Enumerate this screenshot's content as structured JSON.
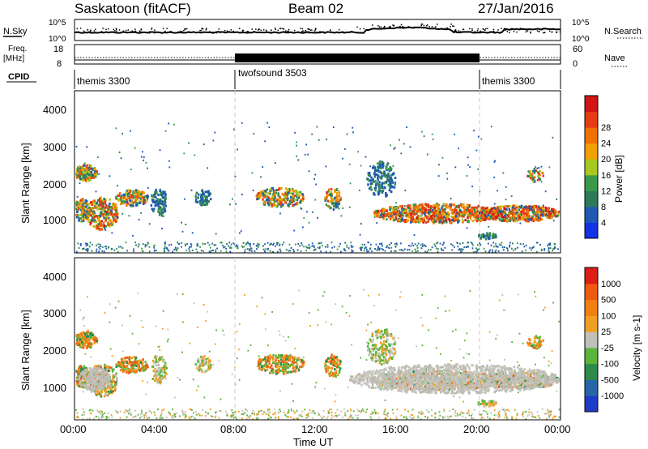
{
  "header": {
    "station": "Saskatoon (fitACF)",
    "beam": "Beam 02",
    "date": "27/Jan/2016"
  },
  "noise_panel": {
    "left_label": "N.Sky",
    "left_ticks": [
      "10^5",
      "10^0"
    ],
    "right_ticks": [
      "10^5",
      "10^0"
    ],
    "right_label": "N.Search"
  },
  "freq_panel": {
    "left_label_top": "Freq.",
    "left_label_unit": "[MHz]",
    "left_ticks": [
      "18",
      "8"
    ],
    "right_ticks": [
      "60",
      "0"
    ],
    "right_label": "Nave"
  },
  "cpid": {
    "label": "CPID",
    "segments": [
      {
        "name": "themis 3300",
        "start_hour": 0
      },
      {
        "name": "twofsound 3503",
        "start_hour": 8
      },
      {
        "name": "themis 3300",
        "start_hour": 20
      }
    ]
  },
  "chart_data": [
    {
      "type": "heatmap",
      "name": "power",
      "ylabel": "Slant Range [km]",
      "yticks": [
        "1000",
        "2000",
        "3000",
        "4000"
      ],
      "colorbar": {
        "label": "Power [dB]",
        "ticks": [
          "4",
          "8",
          "12",
          "16",
          "20",
          "24",
          "28"
        ],
        "colors": [
          "#1432e6",
          "#1e5ab4",
          "#2d7a5a",
          "#3a9a4a",
          "#a8c820",
          "#f0a000",
          "#f07000",
          "#e63c14",
          "#d21414"
        ]
      }
    },
    {
      "type": "heatmap",
      "name": "velocity",
      "ylabel": "Slant Range [km]",
      "yticks": [
        "1000",
        "2000",
        "3000",
        "4000"
      ],
      "colorbar": {
        "label": "Velocity [m s-1]",
        "ticks": [
          "1000",
          "500",
          "100",
          "25",
          "-25",
          "-100",
          "-500",
          "-1000"
        ],
        "colors": [
          "#1e3cc8",
          "#2864a8",
          "#2d8a4a",
          "#5ab43c",
          "#c0c0b8",
          "#f0a020",
          "#f08010",
          "#f05a10",
          "#dc1e14"
        ]
      }
    }
  ],
  "xaxis": {
    "ticks": [
      "00:00",
      "04:00",
      "08:00",
      "12:00",
      "16:00",
      "20:00",
      "00:00"
    ],
    "label": "Time UT"
  }
}
